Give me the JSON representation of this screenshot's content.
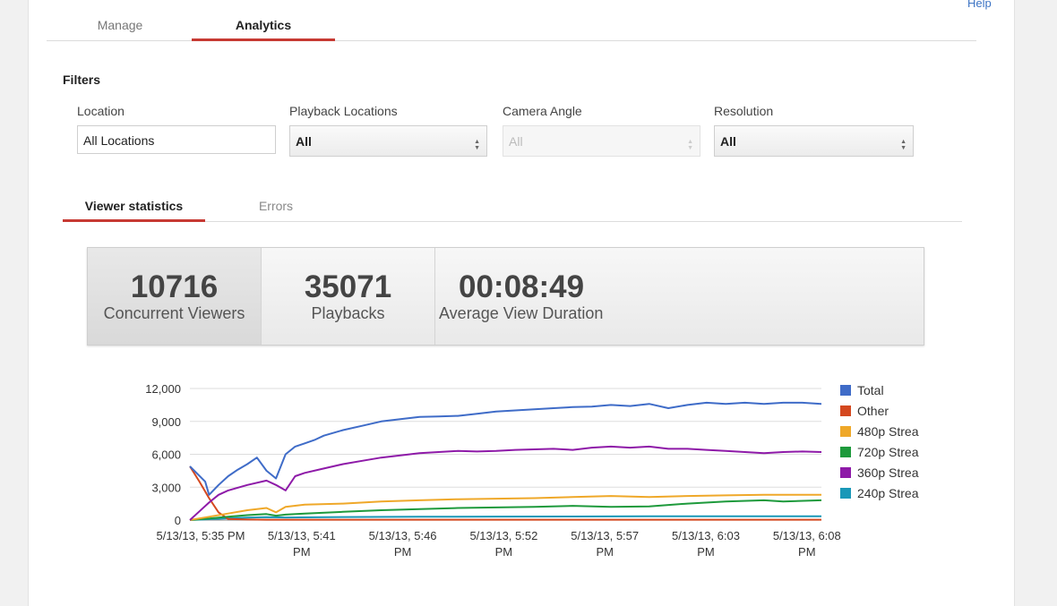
{
  "help_label": "Help",
  "top_tabs": {
    "manage": "Manage",
    "analytics": "Analytics"
  },
  "filters": {
    "title": "Filters",
    "location": {
      "label": "Location",
      "value": "All Locations"
    },
    "playback_locations": {
      "label": "Playback Locations",
      "value": "All"
    },
    "camera_angle": {
      "label": "Camera Angle",
      "value": "All"
    },
    "resolution": {
      "label": "Resolution",
      "value": "All"
    }
  },
  "sub_tabs": {
    "viewer": "Viewer statistics",
    "errors": "Errors"
  },
  "stats": [
    {
      "value": "10716",
      "label": "Concurrent Viewers"
    },
    {
      "value": "35071",
      "label": "Playbacks"
    },
    {
      "value": "00:08:49",
      "label": "Average View Duration"
    }
  ],
  "chart_data": {
    "type": "line",
    "y_ticks": [
      "12,000",
      "9,000",
      "6,000",
      "3,000",
      "0"
    ],
    "ylim": [
      0,
      12000
    ],
    "x_ticks": [
      [
        "5/13/13, 5:35 PM"
      ],
      [
        "5/13/13, 5:41",
        "PM"
      ],
      [
        "5/13/13, 5:46",
        "PM"
      ],
      [
        "5/13/13, 5:52",
        "PM"
      ],
      [
        "5/13/13, 5:57",
        "PM"
      ],
      [
        "5/13/13, 6:03",
        "PM"
      ],
      [
        "5/13/13, 6:08",
        "PM"
      ]
    ],
    "legend_position": "right",
    "series": [
      {
        "name": "Total",
        "color": "#3f6cc8",
        "x": [
          0,
          0.8,
          1,
          1.5,
          2,
          2.5,
          3,
          3.5,
          4,
          4.5,
          5,
          5.5,
          6,
          6.5,
          7,
          8,
          9,
          10,
          11,
          12,
          13,
          14,
          15,
          16,
          17,
          18,
          19,
          20,
          21,
          22,
          23,
          24,
          25,
          26,
          27,
          28,
          29,
          30,
          31,
          32,
          33
        ],
        "y": [
          4900,
          3500,
          2300,
          3200,
          4000,
          4600,
          5100,
          5700,
          4500,
          3800,
          6000,
          6700,
          7000,
          7300,
          7700,
          8200,
          8600,
          9000,
          9200,
          9400,
          9450,
          9500,
          9700,
          9900,
          10000,
          10100,
          10200,
          10300,
          10350,
          10500,
          10400,
          10600,
          10200,
          10500,
          10700,
          10600,
          10700,
          10600,
          10700,
          10700,
          10600
        ]
      },
      {
        "name": "Other",
        "color": "#d4481f",
        "x": [
          0,
          0.5,
          1,
          1.5,
          2,
          3,
          4,
          33
        ],
        "y": [
          4900,
          3500,
          2000,
          700,
          100,
          50,
          30,
          30
        ]
      },
      {
        "name": "480p Strea",
        "color": "#efa829",
        "x": [
          0,
          1,
          2,
          3,
          4,
          4.5,
          5,
          6,
          8,
          10,
          12,
          14,
          16,
          18,
          20,
          22,
          24,
          26,
          28,
          30,
          33
        ],
        "y": [
          0,
          300,
          600,
          900,
          1100,
          700,
          1200,
          1400,
          1500,
          1700,
          1800,
          1900,
          1950,
          2000,
          2100,
          2200,
          2100,
          2200,
          2250,
          2300,
          2300
        ]
      },
      {
        "name": "720p Strea",
        "color": "#1e9a3c",
        "x": [
          0,
          1,
          2,
          3,
          4,
          4.5,
          5,
          6,
          8,
          10,
          12,
          14,
          16,
          18,
          20,
          22,
          24,
          26,
          28,
          30,
          31,
          33
        ],
        "y": [
          0,
          150,
          300,
          450,
          550,
          400,
          500,
          600,
          750,
          900,
          1000,
          1100,
          1150,
          1200,
          1300,
          1200,
          1250,
          1500,
          1700,
          1800,
          1700,
          1800
        ]
      },
      {
        "name": "360p Strea",
        "color": "#8e1aa8",
        "x": [
          0,
          0.5,
          1,
          1.5,
          2,
          3,
          4,
          4.5,
          5,
          5.5,
          6,
          7,
          8,
          9,
          10,
          11,
          12,
          13,
          14,
          15,
          16,
          17,
          18,
          19,
          20,
          21,
          22,
          23,
          24,
          25,
          26,
          27,
          28,
          29,
          30,
          31,
          32,
          33
        ],
        "y": [
          0,
          800,
          1600,
          2300,
          2700,
          3200,
          3600,
          3200,
          2700,
          4000,
          4300,
          4700,
          5100,
          5400,
          5700,
          5900,
          6100,
          6200,
          6300,
          6250,
          6300,
          6400,
          6450,
          6500,
          6400,
          6600,
          6700,
          6600,
          6700,
          6500,
          6500,
          6400,
          6300,
          6200,
          6100,
          6200,
          6250,
          6200
        ]
      },
      {
        "name": "240p Strea",
        "color": "#1a98b8",
        "x": [
          0,
          1,
          2,
          3,
          4,
          5,
          8,
          12,
          16,
          20,
          24,
          28,
          33
        ],
        "y": [
          0,
          80,
          160,
          220,
          260,
          240,
          280,
          300,
          320,
          330,
          340,
          350,
          350
        ]
      }
    ],
    "x_domain": [
      0,
      33
    ]
  }
}
